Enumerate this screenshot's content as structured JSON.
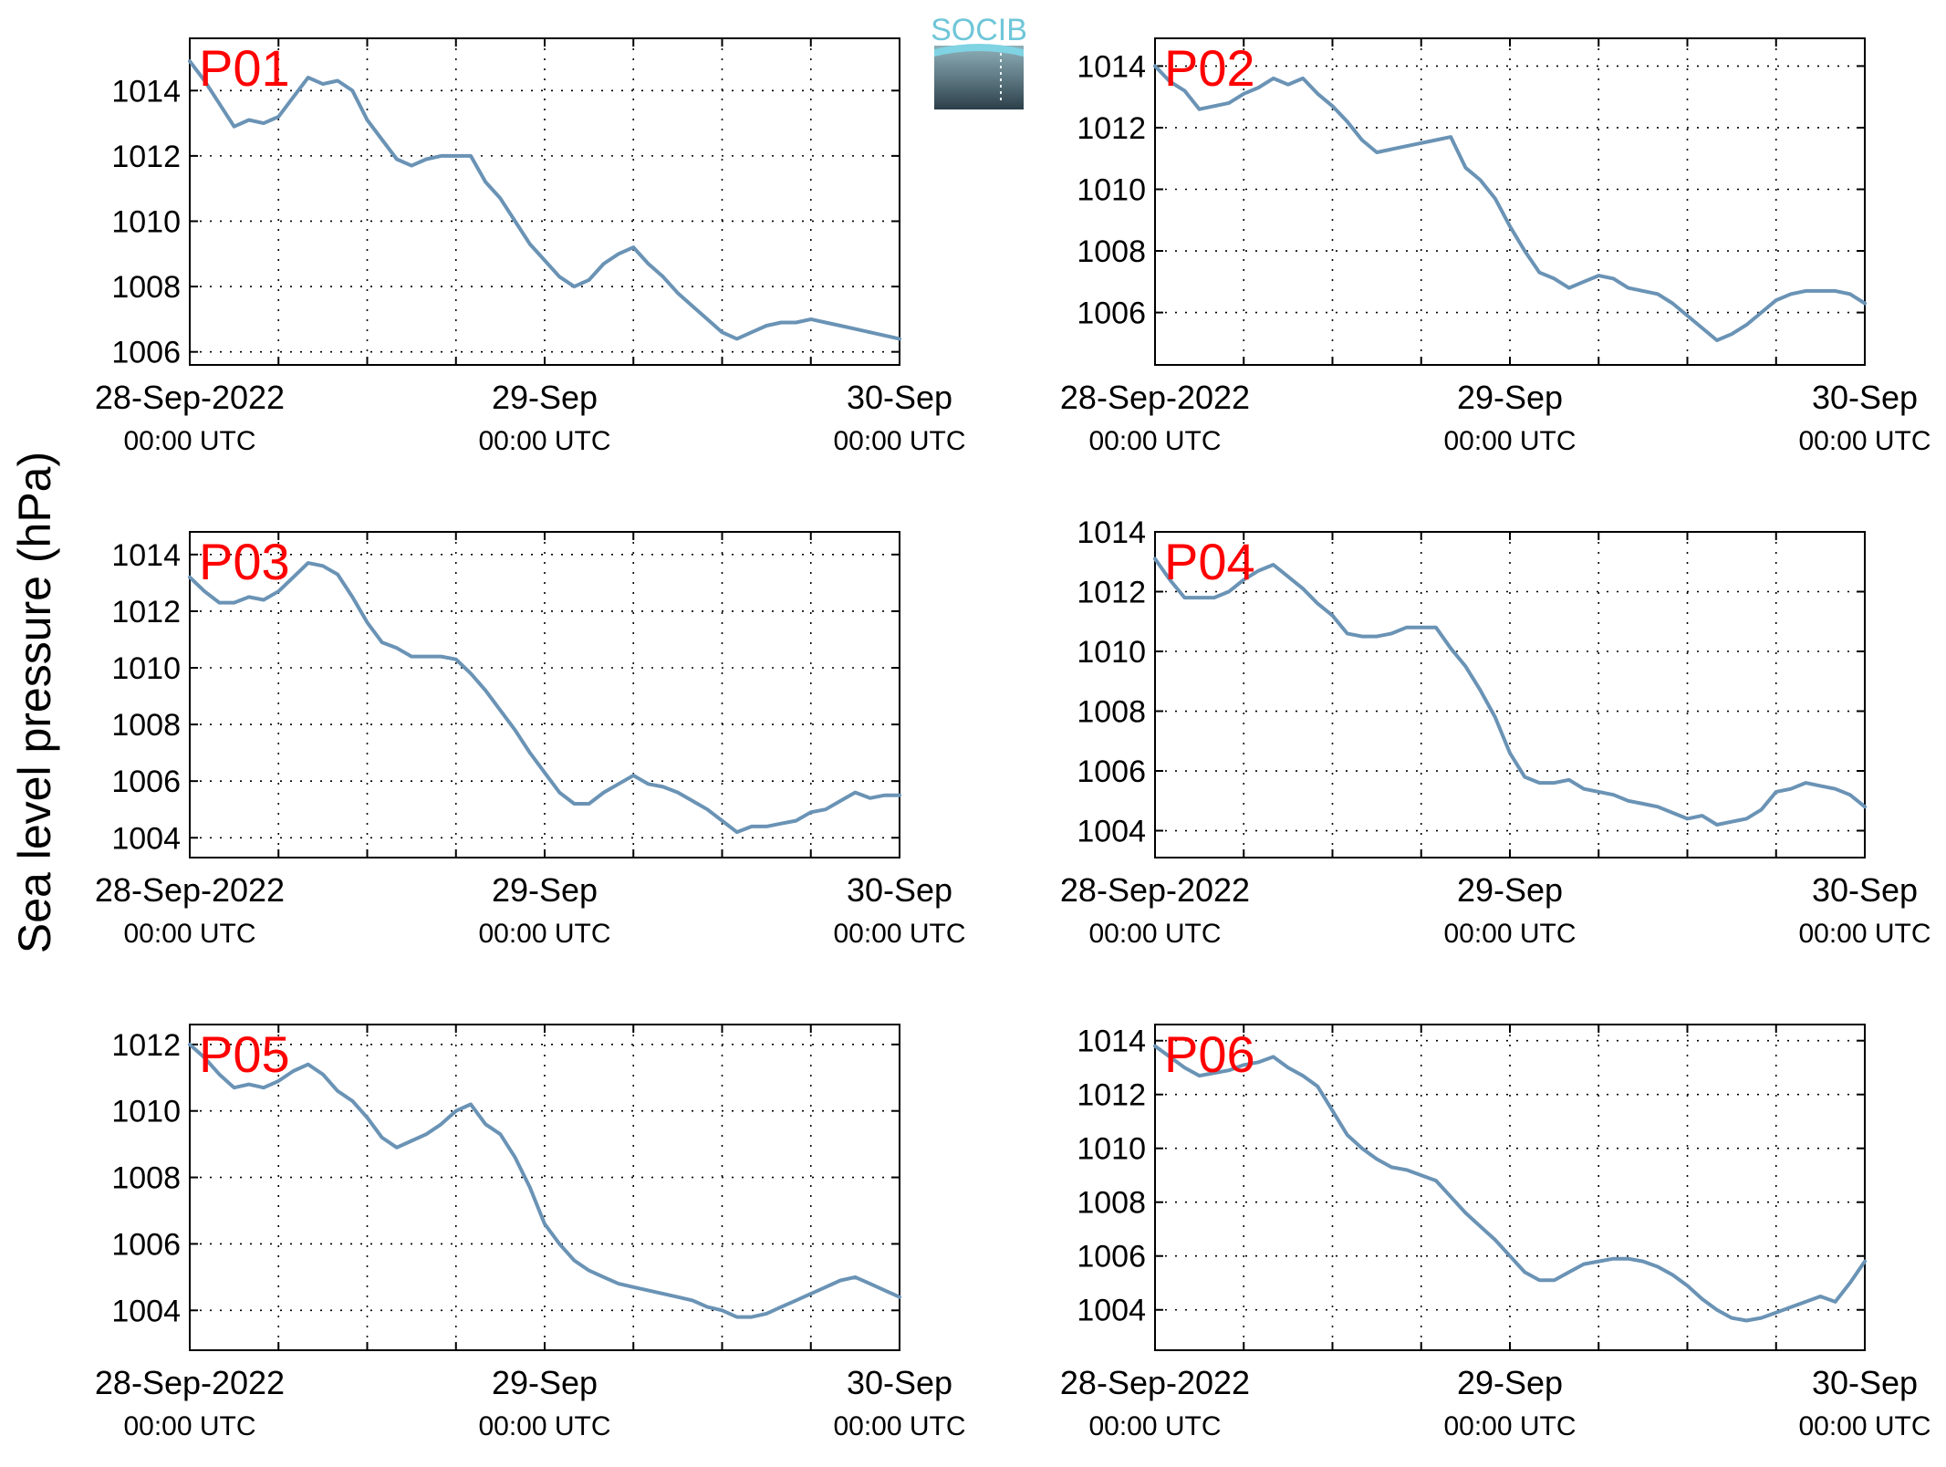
{
  "figure": {
    "ylabel": "Sea level pressure (hPa)",
    "logo_text": "SOCIB",
    "line_color": "#6a93b5",
    "label_color": "#ff0000",
    "x_tick_dates": [
      "28-Sep-2022",
      "29-Sep",
      "30-Sep"
    ],
    "x_tick_time": "00:00 UTC"
  },
  "chart_data": [
    {
      "type": "line",
      "label": "P01",
      "xlim": [
        0,
        48
      ],
      "ylim": [
        1005.6,
        1015.6
      ],
      "yticks": [
        1006,
        1008,
        1010,
        1012,
        1014
      ],
      "grid": true,
      "x": [
        0,
        1,
        2,
        3,
        4,
        5,
        6,
        7,
        8,
        9,
        10,
        11,
        12,
        13,
        14,
        15,
        16,
        17,
        18,
        19,
        20,
        21,
        22,
        23,
        24,
        25,
        26,
        27,
        28,
        29,
        30,
        31,
        32,
        33,
        34,
        35,
        36,
        37,
        38,
        39,
        40,
        41,
        42,
        43,
        44,
        45,
        46,
        47,
        48
      ],
      "y": [
        1014.9,
        1014.3,
        1013.6,
        1012.9,
        1013.1,
        1013.0,
        1013.2,
        1013.8,
        1014.4,
        1014.2,
        1014.3,
        1014.0,
        1013.1,
        1012.5,
        1011.9,
        1011.7,
        1011.9,
        1012.0,
        1012.0,
        1012.0,
        1011.2,
        1010.7,
        1010.0,
        1009.3,
        1008.8,
        1008.3,
        1008.0,
        1008.2,
        1008.7,
        1009.0,
        1009.2,
        1008.7,
        1008.3,
        1007.8,
        1007.4,
        1007.0,
        1006.6,
        1006.4,
        1006.6,
        1006.8,
        1006.9,
        1006.9,
        1007.0,
        1006.9,
        1006.8,
        1006.7,
        1006.6,
        1006.5,
        1006.4
      ]
    },
    {
      "type": "line",
      "label": "P02",
      "xlim": [
        0,
        48
      ],
      "ylim": [
        1004.3,
        1014.9
      ],
      "yticks": [
        1006,
        1008,
        1010,
        1012,
        1014
      ],
      "grid": true,
      "x": [
        0,
        1,
        2,
        3,
        4,
        5,
        6,
        7,
        8,
        9,
        10,
        11,
        12,
        13,
        14,
        15,
        16,
        17,
        18,
        19,
        20,
        21,
        22,
        23,
        24,
        25,
        26,
        27,
        28,
        29,
        30,
        31,
        32,
        33,
        34,
        35,
        36,
        37,
        38,
        39,
        40,
        41,
        42,
        43,
        44,
        45,
        46,
        47,
        48
      ],
      "y": [
        1014.0,
        1013.5,
        1013.2,
        1012.6,
        1012.7,
        1012.8,
        1013.1,
        1013.3,
        1013.6,
        1013.4,
        1013.6,
        1013.1,
        1012.7,
        1012.2,
        1011.6,
        1011.2,
        1011.3,
        1011.4,
        1011.5,
        1011.6,
        1011.7,
        1010.7,
        1010.3,
        1009.7,
        1008.8,
        1008.0,
        1007.3,
        1007.1,
        1006.8,
        1007.0,
        1007.2,
        1007.1,
        1006.8,
        1006.7,
        1006.6,
        1006.3,
        1005.9,
        1005.5,
        1005.1,
        1005.3,
        1005.6,
        1006.0,
        1006.4,
        1006.6,
        1006.7,
        1006.7,
        1006.7,
        1006.6,
        1006.3
      ]
    },
    {
      "type": "line",
      "label": "P03",
      "xlim": [
        0,
        48
      ],
      "ylim": [
        1003.3,
        1014.8
      ],
      "yticks": [
        1004,
        1006,
        1008,
        1010,
        1012,
        1014
      ],
      "grid": true,
      "x": [
        0,
        1,
        2,
        3,
        4,
        5,
        6,
        7,
        8,
        9,
        10,
        11,
        12,
        13,
        14,
        15,
        16,
        17,
        18,
        19,
        20,
        21,
        22,
        23,
        24,
        25,
        26,
        27,
        28,
        29,
        30,
        31,
        32,
        33,
        34,
        35,
        36,
        37,
        38,
        39,
        40,
        41,
        42,
        43,
        44,
        45,
        46,
        47,
        48
      ],
      "y": [
        1013.2,
        1012.7,
        1012.3,
        1012.3,
        1012.5,
        1012.4,
        1012.7,
        1013.2,
        1013.7,
        1013.6,
        1013.3,
        1012.5,
        1011.6,
        1010.9,
        1010.7,
        1010.4,
        1010.4,
        1010.4,
        1010.3,
        1009.8,
        1009.2,
        1008.5,
        1007.8,
        1007.0,
        1006.3,
        1005.6,
        1005.2,
        1005.2,
        1005.6,
        1005.9,
        1006.2,
        1005.9,
        1005.8,
        1005.6,
        1005.3,
        1005.0,
        1004.6,
        1004.2,
        1004.4,
        1004.4,
        1004.5,
        1004.6,
        1004.9,
        1005.0,
        1005.3,
        1005.6,
        1005.4,
        1005.5,
        1005.5
      ]
    },
    {
      "type": "line",
      "label": "P04",
      "xlim": [
        0,
        48
      ],
      "ylim": [
        1003.1,
        1014.0
      ],
      "yticks": [
        1004,
        1006,
        1008,
        1010,
        1012,
        1014
      ],
      "grid": true,
      "x": [
        0,
        1,
        2,
        3,
        4,
        5,
        6,
        7,
        8,
        9,
        10,
        11,
        12,
        13,
        14,
        15,
        16,
        17,
        18,
        19,
        20,
        21,
        22,
        23,
        24,
        25,
        26,
        27,
        28,
        29,
        30,
        31,
        32,
        33,
        34,
        35,
        36,
        37,
        38,
        39,
        40,
        41,
        42,
        43,
        44,
        45,
        46,
        47,
        48
      ],
      "y": [
        1013.1,
        1012.4,
        1011.8,
        1011.8,
        1011.8,
        1012.0,
        1012.4,
        1012.7,
        1012.9,
        1012.5,
        1012.1,
        1011.6,
        1011.2,
        1010.6,
        1010.5,
        1010.5,
        1010.6,
        1010.8,
        1010.8,
        1010.8,
        1010.1,
        1009.5,
        1008.7,
        1007.8,
        1006.6,
        1005.8,
        1005.6,
        1005.6,
        1005.7,
        1005.4,
        1005.3,
        1005.2,
        1005.0,
        1004.9,
        1004.8,
        1004.6,
        1004.4,
        1004.5,
        1004.2,
        1004.3,
        1004.4,
        1004.7,
        1005.3,
        1005.4,
        1005.6,
        1005.5,
        1005.4,
        1005.2,
        1004.8
      ]
    },
    {
      "type": "line",
      "label": "P05",
      "xlim": [
        0,
        48
      ],
      "ylim": [
        1002.8,
        1012.6
      ],
      "yticks": [
        1004,
        1006,
        1008,
        1010,
        1012
      ],
      "grid": true,
      "x": [
        0,
        1,
        2,
        3,
        4,
        5,
        6,
        7,
        8,
        9,
        10,
        11,
        12,
        13,
        14,
        15,
        16,
        17,
        18,
        19,
        20,
        21,
        22,
        23,
        24,
        25,
        26,
        27,
        28,
        29,
        30,
        31,
        32,
        33,
        34,
        35,
        36,
        37,
        38,
        39,
        40,
        41,
        42,
        43,
        44,
        45,
        46,
        47,
        48
      ],
      "y": [
        1012.0,
        1011.6,
        1011.1,
        1010.7,
        1010.8,
        1010.7,
        1010.9,
        1011.2,
        1011.4,
        1011.1,
        1010.6,
        1010.3,
        1009.8,
        1009.2,
        1008.9,
        1009.1,
        1009.3,
        1009.6,
        1010.0,
        1010.2,
        1009.6,
        1009.3,
        1008.6,
        1007.7,
        1006.6,
        1006.0,
        1005.5,
        1005.2,
        1005.0,
        1004.8,
        1004.7,
        1004.6,
        1004.5,
        1004.4,
        1004.3,
        1004.1,
        1004.0,
        1003.8,
        1003.8,
        1003.9,
        1004.1,
        1004.3,
        1004.5,
        1004.7,
        1004.9,
        1005.0,
        1004.8,
        1004.6,
        1004.4
      ]
    },
    {
      "type": "line",
      "label": "P06",
      "xlim": [
        0,
        48
      ],
      "ylim": [
        1002.5,
        1014.6
      ],
      "yticks": [
        1004,
        1006,
        1008,
        1010,
        1012,
        1014
      ],
      "grid": true,
      "x": [
        0,
        1,
        2,
        3,
        4,
        5,
        6,
        7,
        8,
        9,
        10,
        11,
        12,
        13,
        14,
        15,
        16,
        17,
        18,
        19,
        20,
        21,
        22,
        23,
        24,
        25,
        26,
        27,
        28,
        29,
        30,
        31,
        32,
        33,
        34,
        35,
        36,
        37,
        38,
        39,
        40,
        41,
        42,
        43,
        44,
        45,
        46,
        47,
        48
      ],
      "y": [
        1013.8,
        1013.4,
        1013.0,
        1012.7,
        1012.8,
        1012.9,
        1013.1,
        1013.2,
        1013.4,
        1013.0,
        1012.7,
        1012.3,
        1011.4,
        1010.5,
        1010.0,
        1009.6,
        1009.3,
        1009.2,
        1009.0,
        1008.8,
        1008.2,
        1007.6,
        1007.1,
        1006.6,
        1006.0,
        1005.4,
        1005.1,
        1005.1,
        1005.4,
        1005.7,
        1005.8,
        1005.9,
        1005.9,
        1005.8,
        1005.6,
        1005.3,
        1004.9,
        1004.4,
        1004.0,
        1003.7,
        1003.6,
        1003.7,
        1003.9,
        1004.1,
        1004.3,
        1004.5,
        1004.3,
        1005.0,
        1005.8
      ]
    }
  ]
}
